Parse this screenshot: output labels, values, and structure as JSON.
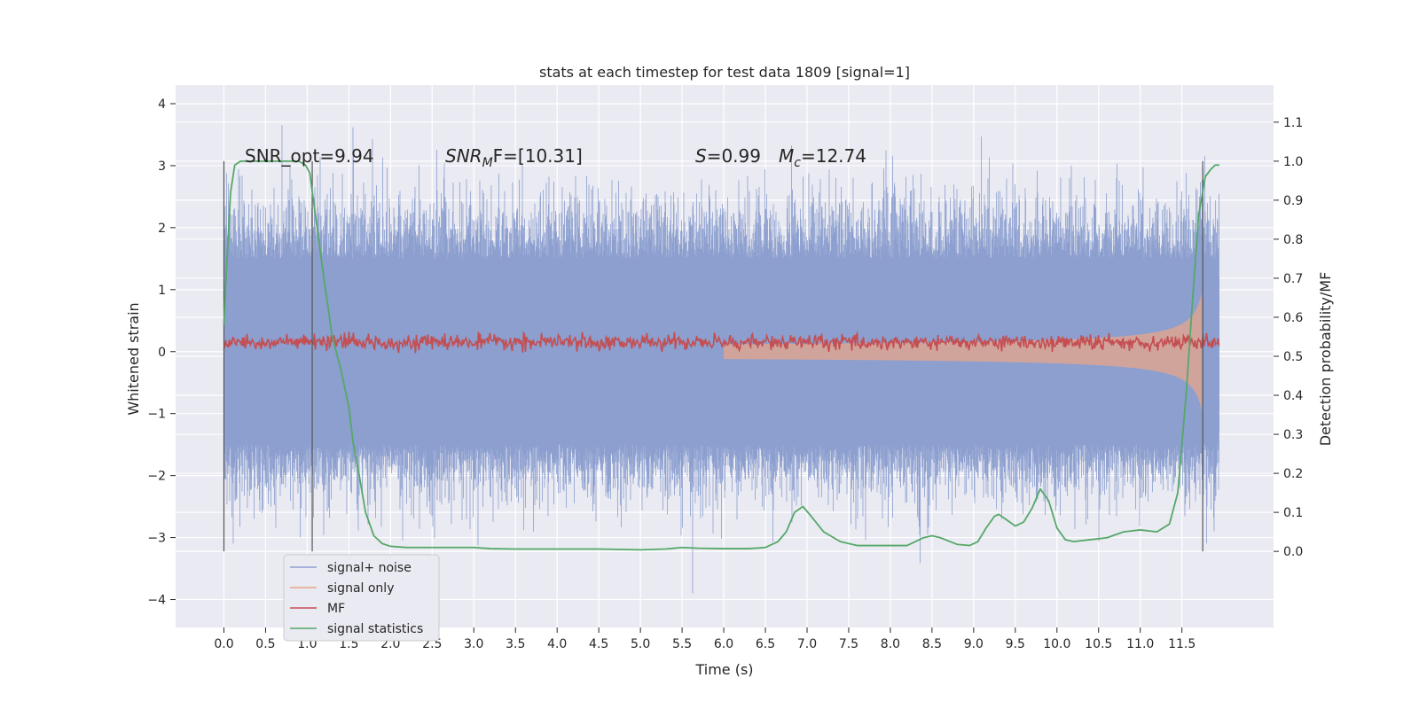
{
  "chart_data": {
    "type": "line",
    "title": "stats at each timestep for test data 1809 [signal=1]",
    "xlabel": "Time (s)",
    "ylabel": "Whitened strain",
    "y2label": "Detection probability/MF",
    "xlim": [
      -0.58,
      12.6
    ],
    "ylim": [
      -4.45,
      4.3
    ],
    "y2lim": [
      -0.195,
      1.195
    ],
    "xticks": [
      0.0,
      0.5,
      1.0,
      1.5,
      2.0,
      2.5,
      3.0,
      3.5,
      4.0,
      4.5,
      5.0,
      5.5,
      6.0,
      6.5,
      7.0,
      7.5,
      8.0,
      8.5,
      9.0,
      9.5,
      10.0,
      10.5,
      11.0,
      11.5
    ],
    "xtick_labels": [
      "0.0",
      "0.5",
      "1.0",
      "1.5",
      "2.0",
      "2.5",
      "3.0",
      "3.5",
      "4.0",
      "4.5",
      "5.0",
      "5.5",
      "6.0",
      "6.5",
      "7.0",
      "7.5",
      "8.0",
      "8.5",
      "9.0",
      "9.5",
      "10.0",
      "10.5",
      "11.0",
      "11.5"
    ],
    "yticks": [
      -4,
      -3,
      -2,
      -1,
      0,
      1,
      2,
      3,
      4
    ],
    "ytick_labels": [
      "−4",
      "−3",
      "−2",
      "−1",
      "0",
      "1",
      "2",
      "3",
      "4"
    ],
    "y2ticks": [
      0.0,
      0.1,
      0.2,
      0.3,
      0.4,
      0.5,
      0.6,
      0.7,
      0.8,
      0.9,
      1.0,
      1.1
    ],
    "y2tick_labels": [
      "0.0",
      "0.1",
      "0.2",
      "0.3",
      "0.4",
      "0.5",
      "0.6",
      "0.7",
      "0.8",
      "0.9",
      "1.0",
      "1.1"
    ],
    "grid": true,
    "legend_position": "lower-left",
    "series": [
      {
        "name": "signal+ noise",
        "color": "#8c9fcf",
        "axis": "left",
        "description_range": [
          -4.1,
          3.9
        ],
        "x_range": [
          0.0,
          11.95
        ]
      },
      {
        "name": "signal only",
        "color": "#e8a58a",
        "axis": "left",
        "x_range": [
          0.0,
          11.75
        ]
      },
      {
        "name": "MF",
        "color": "#c44e52",
        "axis": "left",
        "level": 0.15,
        "x_range": [
          0.0,
          11.95
        ]
      },
      {
        "name": "signal statistics",
        "color": "#55a868",
        "axis": "right",
        "x": [
          0.0,
          0.03,
          0.08,
          0.13,
          0.2,
          0.3,
          0.45,
          0.6,
          0.75,
          0.9,
          0.98,
          1.03,
          1.1,
          1.2,
          1.3,
          1.4,
          1.5,
          1.55,
          1.62,
          1.7,
          1.8,
          1.9,
          2.0,
          2.2,
          2.5,
          2.8,
          3.0,
          3.2,
          3.5,
          4.0,
          4.5,
          5.0,
          5.3,
          5.5,
          5.7,
          6.0,
          6.3,
          6.5,
          6.65,
          6.75,
          6.85,
          6.95,
          7.05,
          7.2,
          7.4,
          7.6,
          7.8,
          8.0,
          8.2,
          8.4,
          8.5,
          8.6,
          8.8,
          8.95,
          9.05,
          9.15,
          9.25,
          9.3,
          9.4,
          9.5,
          9.6,
          9.7,
          9.8,
          9.9,
          10.0,
          10.1,
          10.2,
          10.4,
          10.6,
          10.8,
          11.0,
          11.2,
          11.35,
          11.45,
          11.55,
          11.62,
          11.7,
          11.78,
          11.85,
          11.9,
          11.95
        ],
        "values": [
          0.58,
          0.72,
          0.92,
          0.99,
          1.0,
          1.0,
          1.0,
          1.0,
          1.0,
          1.0,
          0.99,
          0.97,
          0.86,
          0.7,
          0.55,
          0.47,
          0.37,
          0.28,
          0.2,
          0.1,
          0.04,
          0.02,
          0.013,
          0.01,
          0.01,
          0.01,
          0.01,
          0.007,
          0.006,
          0.006,
          0.006,
          0.004,
          0.006,
          0.01,
          0.008,
          0.007,
          0.007,
          0.01,
          0.025,
          0.05,
          0.1,
          0.115,
          0.09,
          0.05,
          0.025,
          0.015,
          0.015,
          0.015,
          0.015,
          0.035,
          0.04,
          0.035,
          0.018,
          0.015,
          0.025,
          0.06,
          0.09,
          0.095,
          0.08,
          0.065,
          0.075,
          0.11,
          0.16,
          0.13,
          0.06,
          0.03,
          0.025,
          0.03,
          0.035,
          0.05,
          0.055,
          0.05,
          0.07,
          0.15,
          0.4,
          0.62,
          0.86,
          0.96,
          0.98,
          0.99,
          0.99
        ]
      }
    ],
    "vlines_x": [
      0.0,
      1.06,
      11.75
    ],
    "annotations": [
      {
        "text": "SNR_opt=9.94",
        "style": "normal"
      },
      {
        "text": "SNR",
        "sub": "M",
        "suffix": "F=[10.31]",
        "style": "math"
      },
      {
        "text": "S",
        "suffix": "=0.99",
        "style": "math"
      },
      {
        "text": "M",
        "sub": "c",
        "suffix": "=12.74",
        "style": "math"
      }
    ]
  }
}
